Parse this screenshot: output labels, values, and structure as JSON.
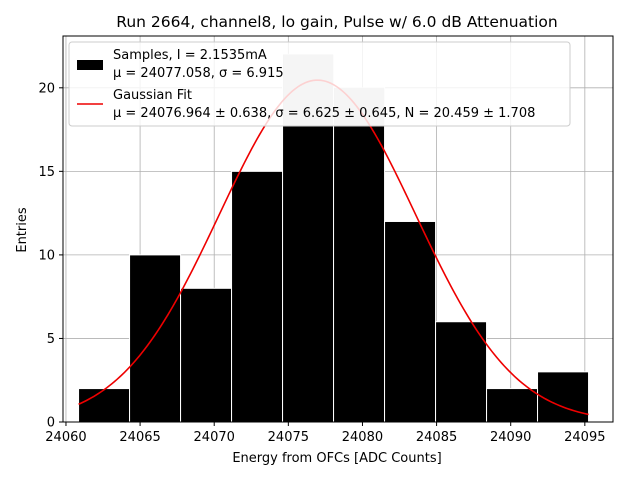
{
  "chart_data": {
    "type": "bar",
    "title": "Run 2664, channel8, lo gain, Pulse w/ 6.0 dB Attenuation",
    "xlabel": "Energy from OFCs [ADC Counts]",
    "ylabel": "Entries",
    "xlim": [
      24059.8,
      24096.9
    ],
    "ylim": [
      0,
      23.1
    ],
    "xticks": [
      24060,
      24065,
      24070,
      24075,
      24080,
      24085,
      24090,
      24095
    ],
    "yticks": [
      0,
      5,
      10,
      15,
      20
    ],
    "grid": true,
    "legend_position": "top-left",
    "histogram": {
      "name": "Samples, I = 2.1535mA",
      "stats_line": "μ = 24077.058, σ = 6.915",
      "bin_edges": [
        24060.85,
        24064.29,
        24067.73,
        24071.17,
        24074.61,
        24078.05,
        24081.49,
        24084.93,
        24088.37,
        24091.81,
        24095.25
      ],
      "counts": [
        2,
        10,
        8,
        15,
        22,
        20,
        12,
        6,
        2,
        3
      ],
      "color": "#000000",
      "overlap_color": "#c8c8c8"
    },
    "fit": {
      "name": "Gaussian Fit",
      "stats_line": "μ = 24076.964 ± 0.638, σ = 6.625 ± 0.645, N = 20.459 ± 1.708",
      "mu": 24076.964,
      "sigma": 6.625,
      "N": 20.459,
      "x_range": [
        24060.85,
        24095.25
      ],
      "color": "#ee0000"
    }
  }
}
